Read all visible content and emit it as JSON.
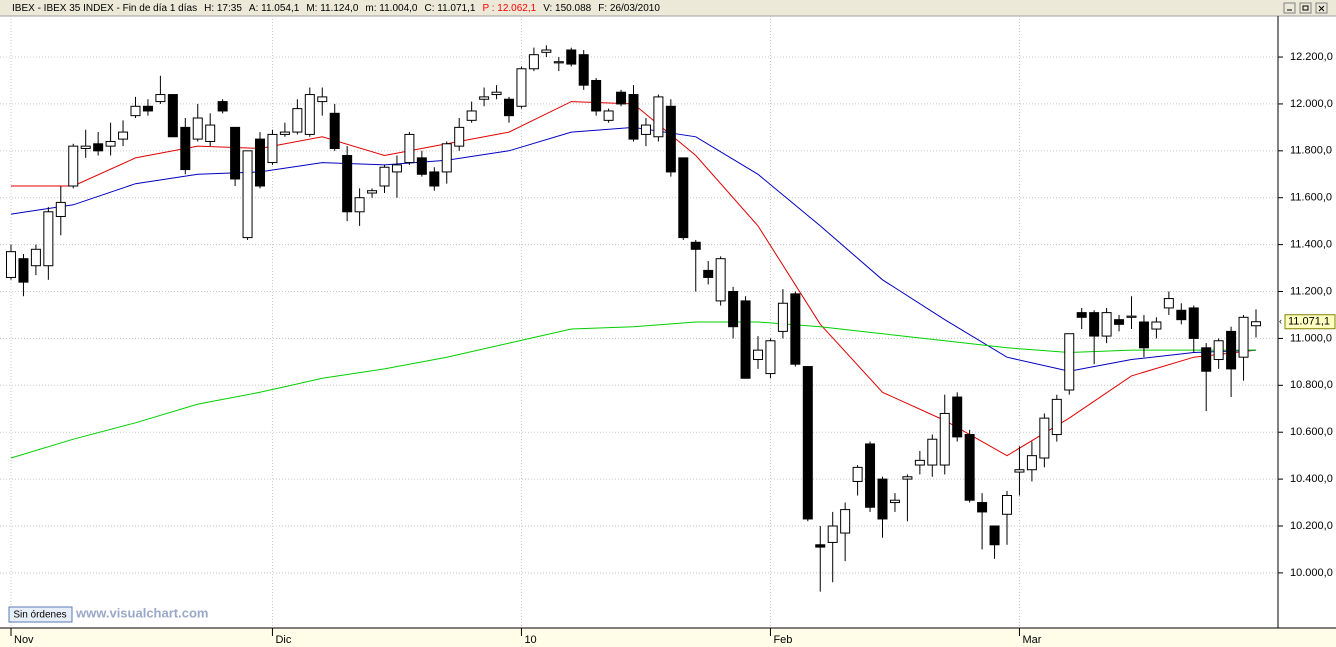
{
  "header": [
    {
      "text": "IBEX - IBEX 35 INDEX - Fin de día 1 días",
      "color": "#000000"
    },
    {
      "text": "H: 17:35",
      "color": "#000000"
    },
    {
      "text": "A: 11.054,1",
      "color": "#000000"
    },
    {
      "text": "M: 11.124,0",
      "color": "#000000"
    },
    {
      "text": "m: 11.004,0",
      "color": "#000000"
    },
    {
      "text": "C: 11.071,1",
      "color": "#000000"
    },
    {
      "text": "P : 12.062,1",
      "color": "#ff0000"
    },
    {
      "text": "V: 150.088",
      "color": "#000000"
    },
    {
      "text": "F: 26/03/2010",
      "color": "#000000"
    }
  ],
  "button": "Sin órdenes",
  "watermark": "www.visualchart.com",
  "chart_data": {
    "type": "candlestick",
    "categories": [
      "Nov",
      null,
      null,
      null,
      null,
      null,
      null,
      null,
      null,
      null,
      null,
      null,
      null,
      null,
      null,
      null,
      null,
      null,
      null,
      null,
      null,
      "Dic",
      null,
      null,
      null,
      null,
      null,
      null,
      null,
      null,
      null,
      null,
      null,
      null,
      null,
      null,
      null,
      null,
      null,
      null,
      null,
      "10",
      null,
      null,
      null,
      null,
      null,
      null,
      null,
      null,
      null,
      null,
      null,
      null,
      null,
      null,
      null,
      null,
      null,
      null,
      null,
      "Feb",
      null,
      null,
      null,
      null,
      null,
      null,
      null,
      null,
      null,
      null,
      null,
      null,
      null,
      null,
      null,
      null,
      null,
      null,
      null,
      "Mar",
      null,
      null,
      null,
      null,
      null,
      null,
      null,
      null,
      null,
      null,
      null,
      null,
      null,
      null,
      null,
      null,
      null,
      null,
      null
    ],
    "open": [
      11260,
      11340,
      11310,
      11310,
      11520,
      11650,
      11810,
      11830,
      11820,
      11850,
      11950,
      11990,
      12010,
      12040,
      11900,
      11850,
      11840,
      12010,
      11900,
      11430,
      11850,
      11750,
      11870,
      11880,
      11870,
      12010,
      11960,
      11780,
      11540,
      11620,
      11650,
      11710,
      11750,
      11770,
      11710,
      11710,
      11820,
      11930,
      12020,
      12040,
      12020,
      11990,
      12150,
      12220,
      12175,
      12230,
      12210,
      12100,
      11930,
      12050,
      12040,
      11870,
      11860,
      11990,
      11770,
      11410,
      11290,
      11160,
      11200,
      11160,
      10910,
      10850,
      11030,
      11190,
      10880,
      10120,
      10130,
      10170,
      10390,
      10550,
      10400,
      10300,
      10400,
      10460,
      10460,
      10460,
      10750,
      10590,
      10300,
      10200,
      10250,
      10430,
      10440,
      10490,
      10590,
      10780,
      11110,
      11110,
      11010,
      11080,
      11090,
      11070,
      11040,
      11130,
      11120,
      11130,
      10960,
      10910,
      11030,
      10920,
      11054.1
    ],
    "high": [
      11400,
      11360,
      11400,
      11560,
      11650,
      11830,
      11890,
      11880,
      11920,
      11930,
      12030,
      12020,
      12120,
      12040,
      11940,
      12000,
      11960,
      12020,
      11900,
      11800,
      11880,
      11890,
      11920,
      12020,
      12070,
      12070,
      12000,
      11820,
      11640,
      11640,
      11740,
      11780,
      11880,
      11800,
      11730,
      11840,
      11940,
      12010,
      12070,
      12080,
      12030,
      12160,
      12240,
      12250,
      12200,
      12240,
      12230,
      12110,
      11980,
      12060,
      12080,
      11940,
      12040,
      12020,
      11770,
      11420,
      11330,
      11350,
      11220,
      11180,
      11010,
      11000,
      11210,
      11200,
      10880,
      10200,
      10260,
      10300,
      10460,
      10560,
      10410,
      10340,
      10420,
      10520,
      10590,
      10760,
      10770,
      10610,
      10340,
      10200,
      10350,
      10540,
      10560,
      10680,
      10760,
      11020,
      11130,
      11120,
      11130,
      11100,
      11180,
      11100,
      11090,
      11200,
      11150,
      11140,
      10980,
      11000,
      11050,
      11100,
      11124
    ],
    "low": [
      11250,
      11180,
      11270,
      11250,
      11440,
      11640,
      11770,
      11780,
      11780,
      11820,
      11940,
      11950,
      12000,
      11860,
      11700,
      11840,
      11820,
      11960,
      11650,
      11420,
      11640,
      11740,
      11860,
      11870,
      11860,
      11950,
      11800,
      11500,
      11480,
      11600,
      11620,
      11600,
      11740,
      11690,
      11630,
      11660,
      11800,
      11920,
      11990,
      12020,
      11920,
      11980,
      12140,
      12200,
      12140,
      12160,
      12060,
      11950,
      11920,
      11990,
      11840,
      11820,
      11840,
      11690,
      11420,
      11200,
      11230,
      11140,
      11000,
      10830,
      10870,
      10830,
      11000,
      10880,
      10220,
      9920,
      9960,
      10050,
      10330,
      10260,
      10150,
      10260,
      10220,
      10420,
      10410,
      10420,
      10560,
      10300,
      10100,
      10060,
      10120,
      10330,
      10390,
      10450,
      10560,
      10760,
      11040,
      10890,
      10980,
      11030,
      11040,
      10920,
      11000,
      11100,
      11060,
      10940,
      10690,
      10870,
      10750,
      10820,
      11004
    ],
    "close": [
      11370,
      11240,
      11380,
      11540,
      11580,
      11820,
      11820,
      11800,
      11840,
      11880,
      11990,
      11970,
      12040,
      11860,
      11720,
      11940,
      11910,
      11970,
      11680,
      11800,
      11650,
      11870,
      11880,
      11980,
      12040,
      12030,
      11810,
      11540,
      11600,
      11630,
      11730,
      11740,
      11870,
      11700,
      11650,
      11830,
      11900,
      11970,
      12030,
      12050,
      11950,
      12150,
      12210,
      12230,
      12180,
      12170,
      12080,
      11970,
      11970,
      12000,
      11850,
      11910,
      12030,
      11710,
      11430,
      11380,
      11260,
      11340,
      11050,
      10830,
      10950,
      10990,
      11150,
      10890,
      10230,
      10110,
      10200,
      10270,
      10450,
      10280,
      10230,
      10310,
      10410,
      10480,
      10570,
      10680,
      10580,
      10310,
      10260,
      10120,
      10330,
      10440,
      10500,
      10660,
      10740,
      11020,
      11090,
      11010,
      11110,
      11060,
      11095,
      10960,
      11070,
      11170,
      11080,
      11000,
      10860,
      10990,
      10870,
      11090,
      11071.1
    ],
    "lines": [
      {
        "color": "#e00000",
        "x": [
          0,
          5,
          10,
          15,
          20,
          25,
          30,
          35,
          40,
          45,
          50,
          55,
          60,
          65,
          70,
          75,
          80,
          85,
          90,
          95,
          100
        ],
        "values": [
          11650,
          11650,
          11770,
          11820,
          11810,
          11860,
          11780,
          11830,
          11880,
          12010,
          12000,
          11780,
          11480,
          11060,
          10770,
          10650,
          10500,
          10660,
          10840,
          10920,
          10950
        ]
      },
      {
        "color": "#0000c0",
        "x": [
          0,
          5,
          10,
          15,
          20,
          25,
          30,
          35,
          40,
          45,
          50,
          55,
          60,
          65,
          70,
          75,
          80,
          85,
          90,
          95,
          100
        ],
        "values": [
          11530,
          11570,
          11660,
          11700,
          11710,
          11750,
          11740,
          11760,
          11800,
          11880,
          11900,
          11860,
          11700,
          11480,
          11250,
          11080,
          10920,
          10860,
          10910,
          10940,
          10950
        ]
      },
      {
        "color": "#00d000",
        "x": [
          0,
          5,
          10,
          15,
          20,
          25,
          30,
          35,
          40,
          45,
          50,
          55,
          60,
          65,
          70,
          75,
          80,
          85,
          90,
          95,
          100
        ],
        "values": [
          10490,
          10570,
          10640,
          10720,
          10770,
          10830,
          10870,
          10920,
          10980,
          11040,
          11050,
          11070,
          11070,
          11050,
          11020,
          10990,
          10960,
          10940,
          10950,
          10950,
          10950
        ]
      }
    ],
    "ylim": [
      9765,
      12375
    ],
    "yticks": [
      {
        "value": 10000,
        "label": "10.000,0"
      },
      {
        "value": 10200,
        "label": "10.200,0"
      },
      {
        "value": 10400,
        "label": "10.400,0"
      },
      {
        "value": 10600,
        "label": "10.600,0"
      },
      {
        "value": 10800,
        "label": "10.800,0"
      },
      {
        "value": 11000,
        "label": "11.000,0"
      },
      {
        "value": 11200,
        "label": "11.200,0"
      },
      {
        "value": 11400,
        "label": "11.400,0"
      },
      {
        "value": 11600,
        "label": "11.600,0"
      },
      {
        "value": 11800,
        "label": "11.800,0"
      },
      {
        "value": 12000,
        "label": "12.000,0"
      },
      {
        "value": 12200,
        "label": "12.200,0"
      }
    ],
    "grid": true,
    "last_price_label": "11.071,1"
  }
}
